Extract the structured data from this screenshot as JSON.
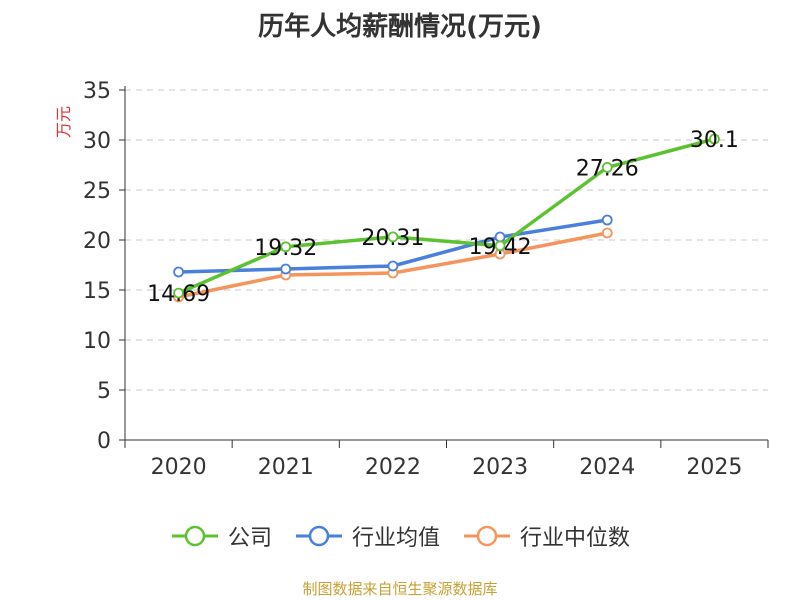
{
  "chart_data": {
    "type": "line",
    "title": "历年人均薪酬情况(万元)",
    "ylabel": "万元",
    "xlabel": "",
    "categories": [
      "2020",
      "2021",
      "2022",
      "2023",
      "2024",
      "2025"
    ],
    "ylim": [
      0,
      35
    ],
    "yticks": [
      0,
      5,
      10,
      15,
      20,
      25,
      30,
      35
    ],
    "grid": true,
    "legend_position": "bottom",
    "series": [
      {
        "name": "公司",
        "color": "#5cc230",
        "values": [
          14.69,
          19.32,
          20.31,
          19.42,
          27.26,
          30.1
        ],
        "labels": [
          "14.69",
          "19.32",
          "20.31",
          "19.42",
          "27.26",
          "30.1"
        ]
      },
      {
        "name": "行业均值",
        "color": "#4a7fdc",
        "values": [
          16.8,
          17.1,
          17.4,
          20.3,
          22.0,
          null
        ]
      },
      {
        "name": "行业中位数",
        "color": "#f4955d",
        "values": [
          14.3,
          16.5,
          16.7,
          18.6,
          20.7,
          null
        ]
      }
    ]
  },
  "footer": {
    "source": "制图数据来自恒生聚源数据库"
  }
}
